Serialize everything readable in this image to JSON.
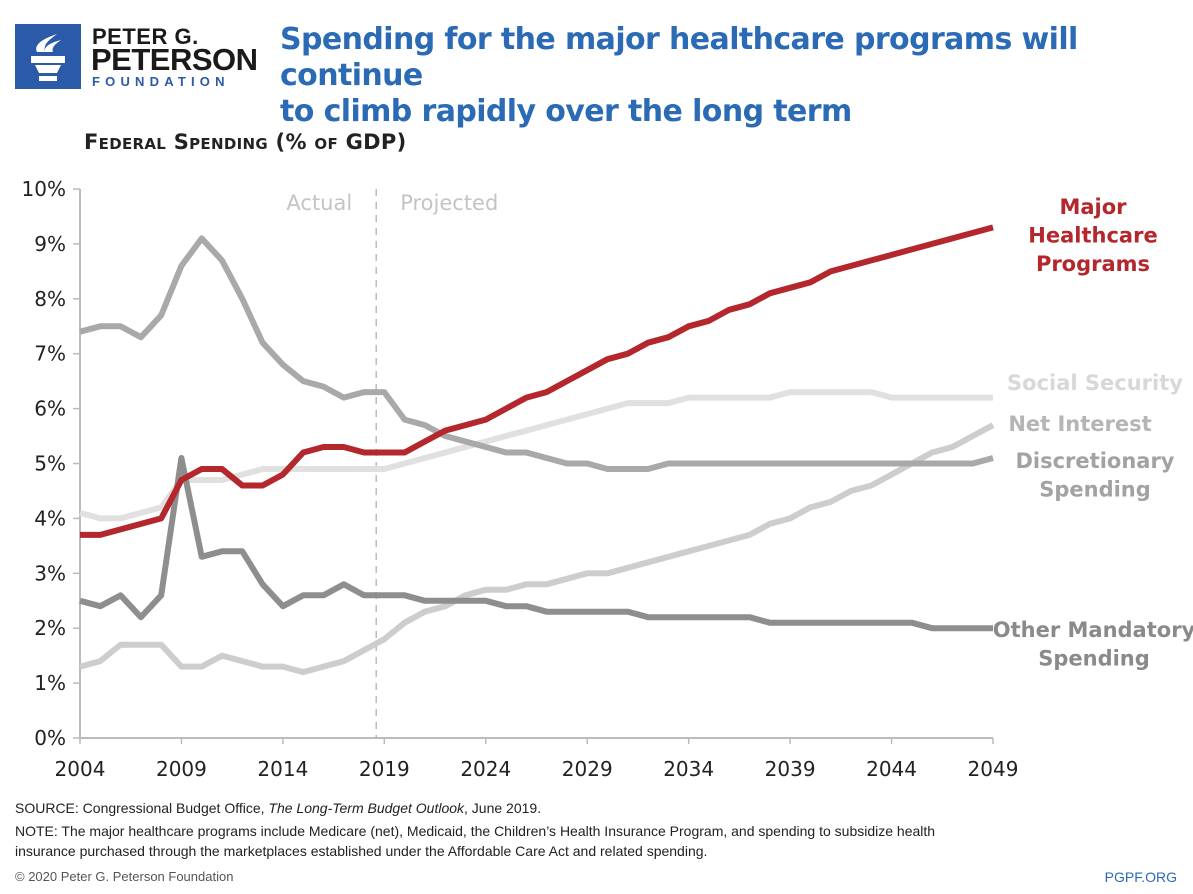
{
  "logo": {
    "line1": "PETER G.",
    "line2": "PETERSON",
    "line3": "FOUNDATION",
    "color": "#2b5ba8"
  },
  "title_line1": "Spending for the major healthcare programs will continue",
  "title_line2": "to climb rapidly over the long term",
  "chart_data": {
    "type": "line",
    "ylabel": "Federal Spending (% of GDP)",
    "xlim": [
      2004,
      2049
    ],
    "ylim": [
      0,
      10
    ],
    "x_ticks": [
      2004,
      2009,
      2014,
      2019,
      2024,
      2029,
      2034,
      2039,
      2044,
      2049
    ],
    "y_ticks": [
      "0%",
      "1%",
      "2%",
      "3%",
      "4%",
      "5%",
      "6%",
      "7%",
      "8%",
      "9%",
      "10%"
    ],
    "grid": false,
    "divider": {
      "year": 2018.6,
      "left_label": "Actual",
      "right_label": "Projected"
    },
    "x_start": 2004,
    "series": [
      {
        "name": "Major Healthcare Programs",
        "label_lines": [
          "Major",
          "Healthcare",
          "Programs"
        ],
        "color": "#b3272d",
        "values": [
          3.7,
          3.7,
          3.8,
          3.9,
          4.0,
          4.7,
          4.9,
          4.9,
          4.6,
          4.6,
          4.8,
          5.2,
          5.3,
          5.3,
          5.2,
          5.2,
          5.2,
          5.4,
          5.6,
          5.7,
          5.8,
          6.0,
          6.2,
          6.3,
          6.5,
          6.7,
          6.9,
          7.0,
          7.2,
          7.3,
          7.5,
          7.6,
          7.8,
          7.9,
          8.1,
          8.2,
          8.3,
          8.5,
          8.6,
          8.7,
          8.8,
          8.9,
          9.0,
          9.1,
          9.2,
          9.3
        ]
      },
      {
        "name": "Social Security",
        "label_lines": [
          "Social Security"
        ],
        "color": "#e0e0e0",
        "values": [
          4.1,
          4.0,
          4.0,
          4.1,
          4.2,
          4.7,
          4.7,
          4.7,
          4.8,
          4.9,
          4.9,
          4.9,
          4.9,
          4.9,
          4.9,
          4.9,
          5.0,
          5.1,
          5.2,
          5.3,
          5.4,
          5.5,
          5.6,
          5.7,
          5.8,
          5.9,
          6.0,
          6.1,
          6.1,
          6.1,
          6.2,
          6.2,
          6.2,
          6.2,
          6.2,
          6.3,
          6.3,
          6.3,
          6.3,
          6.3,
          6.2,
          6.2,
          6.2,
          6.2,
          6.2,
          6.2
        ]
      },
      {
        "name": "Net Interest",
        "label_lines": [
          "Net Interest"
        ],
        "color": "#cdcdcd",
        "values": [
          1.3,
          1.4,
          1.7,
          1.7,
          1.7,
          1.3,
          1.3,
          1.5,
          1.4,
          1.3,
          1.3,
          1.2,
          1.3,
          1.4,
          1.6,
          1.8,
          2.1,
          2.3,
          2.4,
          2.6,
          2.7,
          2.7,
          2.8,
          2.8,
          2.9,
          3.0,
          3.0,
          3.1,
          3.2,
          3.3,
          3.4,
          3.5,
          3.6,
          3.7,
          3.9,
          4.0,
          4.2,
          4.3,
          4.5,
          4.6,
          4.8,
          5.0,
          5.2,
          5.3,
          5.5,
          5.7
        ]
      },
      {
        "name": "Discretionary Spending",
        "label_lines": [
          "Discretionary",
          "Spending"
        ],
        "color": "#a9a9a9",
        "values": [
          7.4,
          7.5,
          7.5,
          7.3,
          7.7,
          8.6,
          9.1,
          8.7,
          8.0,
          7.2,
          6.8,
          6.5,
          6.4,
          6.2,
          6.3,
          6.3,
          5.8,
          5.7,
          5.5,
          5.4,
          5.3,
          5.2,
          5.2,
          5.1,
          5.0,
          5.0,
          4.9,
          4.9,
          4.9,
          5.0,
          5.0,
          5.0,
          5.0,
          5.0,
          5.0,
          5.0,
          5.0,
          5.0,
          5.0,
          5.0,
          5.0,
          5.0,
          5.0,
          5.0,
          5.0,
          5.1
        ]
      },
      {
        "name": "Other Mandatory Spending",
        "label_lines": [
          "Other Mandatory",
          "Spending"
        ],
        "color": "#8e8e8e",
        "values": [
          2.5,
          2.4,
          2.6,
          2.2,
          2.6,
          5.1,
          3.3,
          3.4,
          3.4,
          2.8,
          2.4,
          2.6,
          2.6,
          2.8,
          2.6,
          2.6,
          2.6,
          2.5,
          2.5,
          2.5,
          2.5,
          2.4,
          2.4,
          2.3,
          2.3,
          2.3,
          2.3,
          2.3,
          2.2,
          2.2,
          2.2,
          2.2,
          2.2,
          2.2,
          2.1,
          2.1,
          2.1,
          2.1,
          2.1,
          2.1,
          2.1,
          2.1,
          2.0,
          2.0,
          2.0,
          2.0
        ]
      }
    ]
  },
  "footer": {
    "source_prefix": "SOURCE: Congressional Budget Office, ",
    "source_title": "The Long-Term Budget Outlook",
    "source_suffix": ", June 2019.",
    "note_line1": "NOTE: The major healthcare programs include Medicare (net), Medicaid, the Children’s Health Insurance Program, and spending to subsidize health",
    "note_line2": "insurance purchased through the marketplaces established under the Affordable Care Act and related spending.",
    "copyright": "© 2020 Peter G. Peterson Foundation",
    "site": "PGPF.ORG"
  }
}
